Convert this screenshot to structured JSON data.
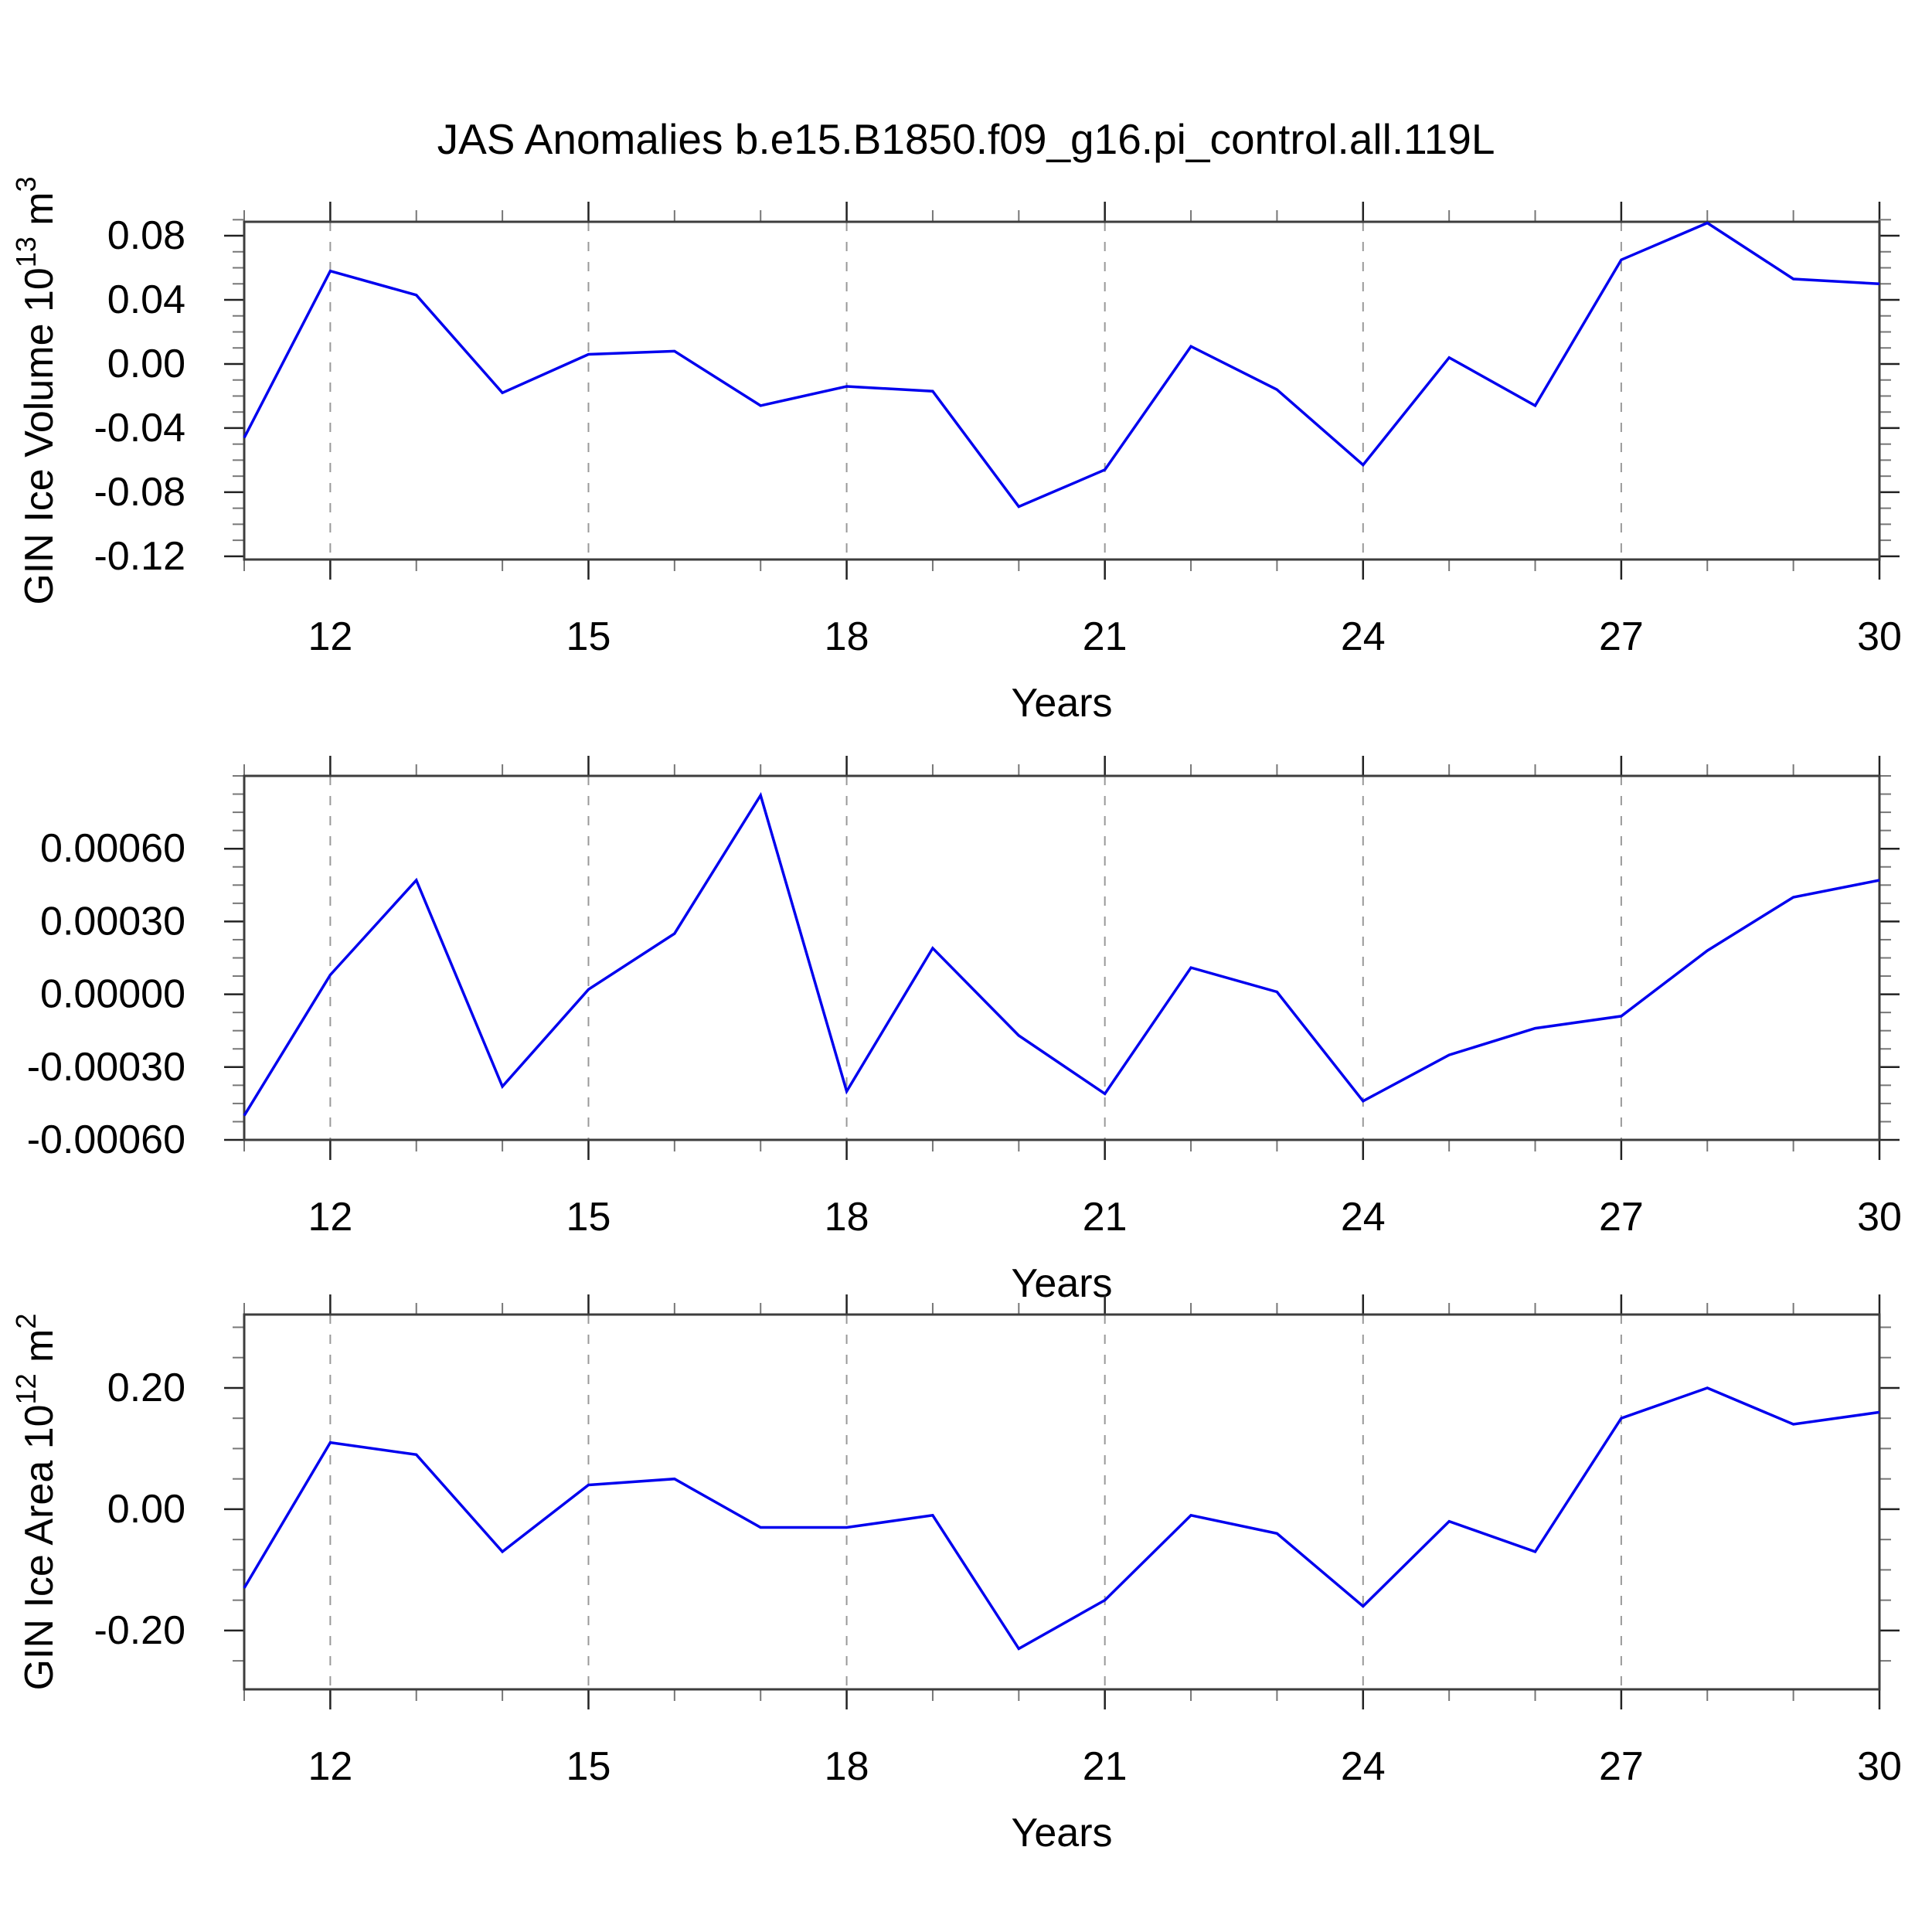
{
  "title": "JAS Anomalies b.e15.B1850.f09_g16.pi_control.all.119L",
  "colors": {
    "line": "#0000EE",
    "frame": "#3D3D3D",
    "grid": "#999999",
    "tick_major": "#222222",
    "tick_minor": "#777777",
    "text": "#000000",
    "background": "#FFFFFF"
  },
  "chart_data": [
    {
      "type": "line",
      "xlabel": "Years",
      "ylabel": "GIN Ice Volume 10^13 m^3",
      "ylabel_rich": [
        {
          "t": "GIN Ice Volume 10"
        },
        {
          "t": "13",
          "sup": true
        },
        {
          "t": " m"
        },
        {
          "t": "3",
          "sup": true
        }
      ],
      "x": [
        11,
        12,
        13,
        14,
        15,
        16,
        17,
        18,
        19,
        20,
        21,
        22,
        23,
        24,
        25,
        26,
        27,
        28,
        29,
        30
      ],
      "values": [
        -0.046,
        0.058,
        0.043,
        -0.018,
        0.006,
        0.008,
        -0.026,
        -0.014,
        -0.017,
        -0.089,
        -0.066,
        0.011,
        -0.016,
        -0.063,
        0.004,
        -0.026,
        0.065,
        0.088,
        0.053,
        0.05
      ],
      "xlim": [
        11,
        30
      ],
      "ylim": [
        -0.122,
        0.0887
      ],
      "xticks": {
        "major": [
          12,
          15,
          18,
          21,
          24,
          27,
          30
        ],
        "minor_step": 1,
        "grid": [
          12,
          15,
          18,
          21,
          24,
          27
        ]
      },
      "yticks": {
        "major": [
          0.08,
          0.04,
          0,
          -0.04,
          -0.08,
          -0.12
        ],
        "labels": [
          "0.08",
          "0.04",
          "0.00",
          "-0.04",
          "-0.08",
          "-0.12"
        ],
        "minor_step": 0.01
      },
      "grid": true,
      "legend": null
    },
    {
      "type": "line",
      "xlabel": "Years",
      "ylabel": "",
      "ylabel_rich": [],
      "x": [
        11,
        12,
        13,
        14,
        15,
        16,
        17,
        18,
        19,
        20,
        21,
        22,
        23,
        24,
        25,
        26,
        27,
        28,
        29,
        30
      ],
      "values": [
        -0.0005,
        8e-05,
        0.00047,
        -0.00038,
        2e-05,
        0.00025,
        0.00082,
        -0.0004,
        0.00019,
        -0.00017,
        -0.00041,
        0.00011,
        1e-05,
        -0.00044,
        -0.00025,
        -0.00014,
        -9e-05,
        0.00018,
        0.0004,
        0.00047
      ],
      "xlim": [
        11,
        30
      ],
      "ylim": [
        -0.0006,
        0.0009
      ],
      "xticks": {
        "major": [
          12,
          15,
          18,
          21,
          24,
          27,
          30
        ],
        "minor_step": 1,
        "grid": [
          12,
          15,
          18,
          21,
          24,
          27
        ]
      },
      "yticks": {
        "major": [
          0.0006,
          0.0003,
          0,
          -0.0003,
          -0.0006
        ],
        "labels": [
          "0.00060",
          "0.00030",
          "0.00000",
          "-0.00030",
          "-0.00060"
        ],
        "minor_step": 7.5e-05
      },
      "grid": true,
      "legend": null
    },
    {
      "type": "line",
      "xlabel": "Years",
      "ylabel": "GIN Ice Area 10^12 m^2",
      "ylabel_rich": [
        {
          "t": "GIN Ice Area 10"
        },
        {
          "t": "12",
          "sup": true
        },
        {
          "t": " m"
        },
        {
          "t": "2",
          "sup": true
        }
      ],
      "x": [
        11,
        12,
        13,
        14,
        15,
        16,
        17,
        18,
        19,
        20,
        21,
        22,
        23,
        24,
        25,
        26,
        27,
        28,
        29,
        30
      ],
      "values": [
        -0.13,
        0.11,
        0.09,
        -0.07,
        0.04,
        0.05,
        -0.03,
        -0.03,
        -0.01,
        -0.23,
        -0.15,
        -0.01,
        -0.04,
        -0.16,
        -0.02,
        -0.07,
        0.15,
        0.2,
        0.14,
        0.16
      ],
      "xlim": [
        11,
        30
      ],
      "ylim": [
        -0.297,
        0.321
      ],
      "xticks": {
        "major": [
          12,
          15,
          18,
          21,
          24,
          27,
          30
        ],
        "minor_step": 1,
        "grid": [
          12,
          15,
          18,
          21,
          24,
          27
        ]
      },
      "yticks": {
        "major": [
          0.2,
          0,
          -0.2
        ],
        "labels": [
          "0.20",
          "0.00",
          "-0.20"
        ],
        "minor_step": 0.05
      },
      "grid": true,
      "legend": null
    }
  ]
}
